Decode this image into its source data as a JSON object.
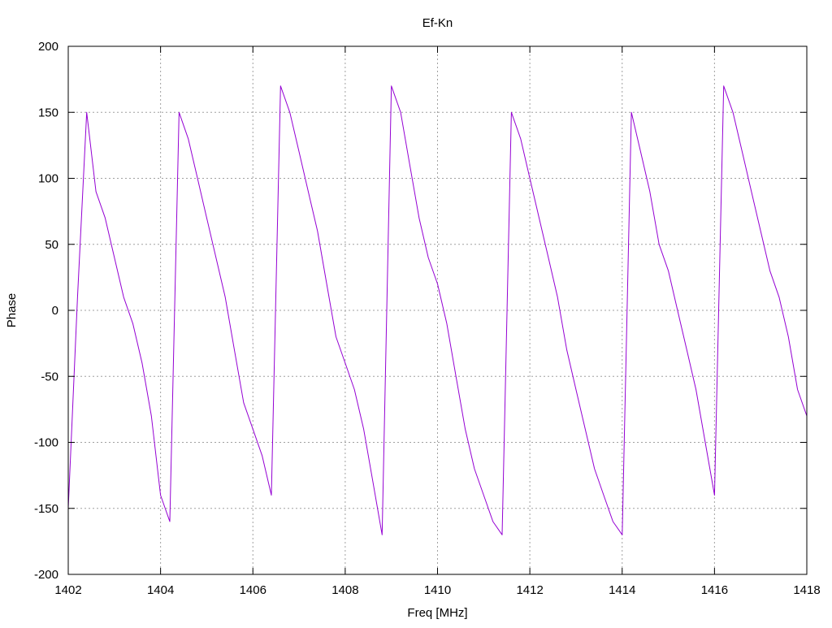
{
  "chart_data": {
    "type": "line",
    "title": "Ef-Kn",
    "xlabel": "Freq [MHz]",
    "ylabel": "Phase",
    "xlim": [
      1402,
      1418
    ],
    "ylim": [
      -200,
      200
    ],
    "grid": true,
    "legend": "none",
    "xticks": [
      1402,
      1404,
      1406,
      1408,
      1410,
      1412,
      1414,
      1416,
      1418
    ],
    "yticks": [
      -200,
      -150,
      -100,
      -50,
      0,
      50,
      100,
      150,
      200
    ],
    "colors": {
      "series": "#9400d3",
      "grid": "#a0a0a0",
      "axes": "#000000"
    },
    "series": [
      {
        "x": [
          1402.0,
          1402.2,
          1402.4,
          1402.6,
          1402.8,
          1403.0,
          1403.2,
          1403.4,
          1403.6,
          1403.8,
          1404.0,
          1404.2,
          1404.4,
          1404.6,
          1404.8,
          1405.0,
          1405.2,
          1405.4,
          1405.6,
          1405.8,
          1406.0,
          1406.2,
          1406.4,
          1406.6,
          1406.8,
          1407.0,
          1407.2,
          1407.4,
          1407.6,
          1407.8,
          1408.0,
          1408.2,
          1408.4,
          1408.6,
          1408.8,
          1409.0,
          1409.2,
          1409.4,
          1409.6,
          1409.8,
          1410.0,
          1410.2,
          1410.4,
          1410.6,
          1410.8,
          1411.0,
          1411.2,
          1411.4,
          1411.6,
          1411.8,
          1412.0,
          1412.2,
          1412.4,
          1412.6,
          1412.8,
          1413.0,
          1413.2,
          1413.4,
          1413.6,
          1413.8,
          1414.0,
          1414.2,
          1414.4,
          1414.6,
          1414.8,
          1415.0,
          1415.2,
          1415.4,
          1415.6,
          1415.8,
          1416.0,
          1416.2,
          1416.4,
          1416.6,
          1416.8,
          1417.0,
          1417.2,
          1417.4,
          1417.6,
          1417.8,
          1418.0
        ],
        "values": [
          -150,
          10,
          150,
          90,
          70,
          40,
          10,
          -10,
          -40,
          -80,
          -140,
          -160,
          150,
          130,
          100,
          70,
          40,
          10,
          -30,
          -70,
          -90,
          -110,
          -140,
          170,
          150,
          120,
          90,
          60,
          20,
          -20,
          -40,
          -60,
          -90,
          -130,
          -170,
          170,
          150,
          110,
          70,
          40,
          20,
          -10,
          -50,
          -90,
          -120,
          -140,
          -160,
          -170,
          150,
          130,
          100,
          70,
          40,
          10,
          -30,
          -60,
          -90,
          -120,
          -140,
          -160,
          -170,
          150,
          120,
          90,
          50,
          30,
          0,
          -30,
          -60,
          -100,
          -140,
          170,
          150,
          120,
          90,
          60,
          30,
          10,
          -20,
          -60,
          -80
        ]
      }
    ]
  }
}
